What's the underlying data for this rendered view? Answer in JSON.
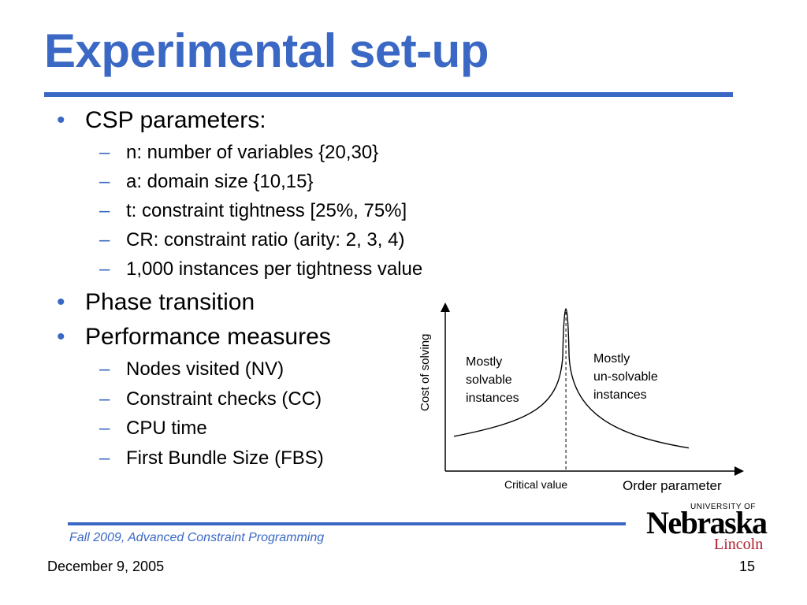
{
  "slide": {
    "title": "Experimental set-up",
    "bullets": [
      {
        "text": "CSP parameters:",
        "subs": [
          "n: number of variables {20,30}",
          "a: domain size {10,15}",
          "t: constraint tightness [25%, 75%]",
          "CR: constraint ratio (arity: 2, 3, 4)",
          "1,000 instances per tightness value"
        ]
      },
      {
        "text": "Phase transition",
        "subs": []
      },
      {
        "text": "Performance measures",
        "subs": [
          "Nodes visited (NV)",
          "Constraint checks (CC)",
          "CPU time",
          "First Bundle Size (FBS)"
        ]
      }
    ],
    "bullet_symbol": "•",
    "sub_symbol": "–"
  },
  "chart_data": {
    "type": "line",
    "ylabel": "Cost of solving",
    "xlabel": "Order parameter",
    "critical_label": "Critical value",
    "annotations": {
      "left": [
        "Mostly",
        "solvable",
        "instances"
      ],
      "right": [
        "Mostly",
        "un-solvable",
        "instances"
      ]
    },
    "critical_x": 0.48,
    "peak_y": 1.0,
    "left_end_y": 0.12,
    "right_end_y": 0.04
  },
  "footer": {
    "course": "Fall 2009, Advanced Constraint Programming",
    "date": "December 9, 2005",
    "page_number": "15"
  },
  "logo": {
    "university": "UNIVERSITY OF",
    "name": "Nebraska",
    "campus": "Lincoln"
  },
  "colors": {
    "accent": "#3a68c4",
    "logo_red": "#b01c2e"
  }
}
